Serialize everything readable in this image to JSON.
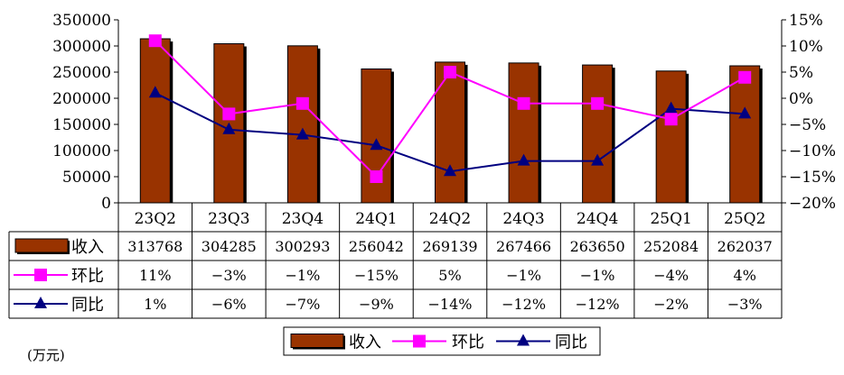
{
  "chart_data": {
    "type": "bar",
    "categories": [
      "23Q2",
      "23Q3",
      "23Q4",
      "24Q1",
      "24Q2",
      "24Q3",
      "24Q4",
      "25Q1",
      "25Q2"
    ],
    "series": [
      {
        "name": "收入",
        "type": "bar",
        "axis": "left",
        "color": "#993300",
        "values": [
          313768,
          304285,
          300293,
          256042,
          269139,
          267466,
          263650,
          252084,
          262037
        ],
        "labels": [
          "313768",
          "304285",
          "300293",
          "256042",
          "269139",
          "267466",
          "263650",
          "252084",
          "262037"
        ]
      },
      {
        "name": "环比",
        "type": "line",
        "axis": "right",
        "color": "#FF00FF",
        "marker": "square",
        "values": [
          11,
          -3,
          -1,
          -15,
          5,
          -1,
          -1,
          -4,
          4
        ],
        "labels": [
          "11%",
          "-3%",
          "-1%",
          "-15%",
          "5%",
          "-1%",
          "-1%",
          "-4%",
          "4%"
        ]
      },
      {
        "name": "同比",
        "type": "line",
        "axis": "right",
        "color": "#000080",
        "marker": "triangle",
        "values": [
          1,
          -6,
          -7,
          -9,
          -14,
          -12,
          -12,
          -2,
          -3
        ],
        "labels": [
          "1%",
          "-6%",
          "-7%",
          "-9%",
          "-14%",
          "-12%",
          "-12%",
          "-2%",
          "-3%"
        ]
      }
    ],
    "y_left": {
      "min": 0,
      "max": 350000,
      "ticks": [
        "350000",
        "300000",
        "250000",
        "200000",
        "150000",
        "100000",
        "50000",
        "0"
      ]
    },
    "y_right": {
      "min": -20,
      "max": 15,
      "ticks": [
        "15%",
        "10%",
        "5%",
        "0%",
        "-5%",
        "-10%",
        "-15%",
        "-20%"
      ]
    },
    "unit_label": "(万元)",
    "legend_position": "bottom",
    "data_table": true
  }
}
